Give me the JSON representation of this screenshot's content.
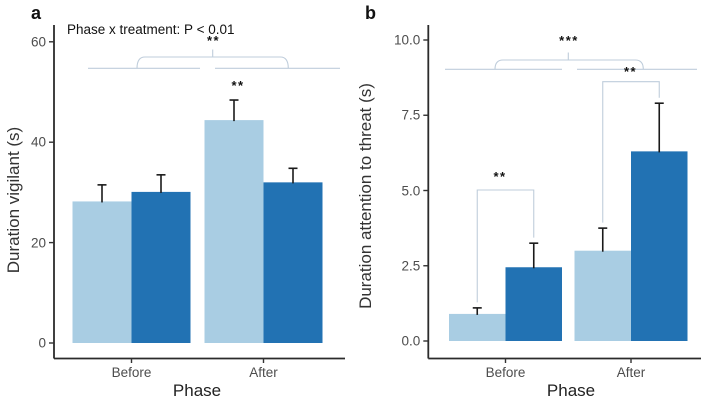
{
  "chart_data": [
    {
      "type": "bar",
      "panel": "a",
      "annotation": "Phase x treatment: P < 0.01",
      "xlabel": "Phase",
      "ylabel": "Duration vigilant (s)",
      "categories": [
        "Before",
        "After"
      ],
      "series": [
        {
          "name": "light_blue",
          "color": "#A9CDE3",
          "values": [
            28.2,
            44.4
          ],
          "error_upper": [
            31.5,
            48.4
          ]
        },
        {
          "name": "dark_blue",
          "color": "#2272B3",
          "values": [
            30.1,
            32.0
          ],
          "error_upper": [
            33.5,
            34.8
          ]
        }
      ],
      "ylim": [
        0,
        63
      ],
      "yticks": [
        0,
        20,
        40,
        60
      ],
      "ytick_labels": [
        "0",
        "20",
        "40",
        "60"
      ],
      "grid": false,
      "legend": "none",
      "significance": [
        {
          "kind": "phase-comparison-brace",
          "label": "**"
        },
        {
          "kind": "bar-annotation",
          "label": "**",
          "category": "After",
          "series": "light_blue"
        }
      ]
    },
    {
      "type": "bar",
      "panel": "b",
      "annotation": "",
      "xlabel": "Phase",
      "ylabel": "Duration attention to threat (s)",
      "categories": [
        "Before",
        "After"
      ],
      "series": [
        {
          "name": "light_blue",
          "color": "#A9CDE3",
          "values": [
            0.9,
            3.0
          ],
          "error_upper": [
            1.1,
            3.75
          ]
        },
        {
          "name": "dark_blue",
          "color": "#2272B3",
          "values": [
            2.45,
            6.3
          ],
          "error_upper": [
            3.25,
            7.9
          ]
        }
      ],
      "ylim": [
        0,
        10.5
      ],
      "yticks": [
        0,
        2.5,
        5,
        7.5,
        10
      ],
      "ytick_labels": [
        "0.0",
        "2.5",
        "5.0",
        "7.5",
        "10.0"
      ],
      "grid": false,
      "legend": "none",
      "significance": [
        {
          "kind": "phase-comparison-brace",
          "label": "***"
        },
        {
          "kind": "within-group-bracket",
          "label": "**",
          "category": "Before"
        },
        {
          "kind": "within-group-bracket",
          "label": "**",
          "category": "After"
        }
      ]
    }
  ],
  "colors": {
    "light_bar": "#A9CDE3",
    "dark_bar": "#2272B3",
    "bracket_line": "#bfcddb",
    "axis_line": "#2b2b2b",
    "error_bar": "#1a1a1a"
  }
}
